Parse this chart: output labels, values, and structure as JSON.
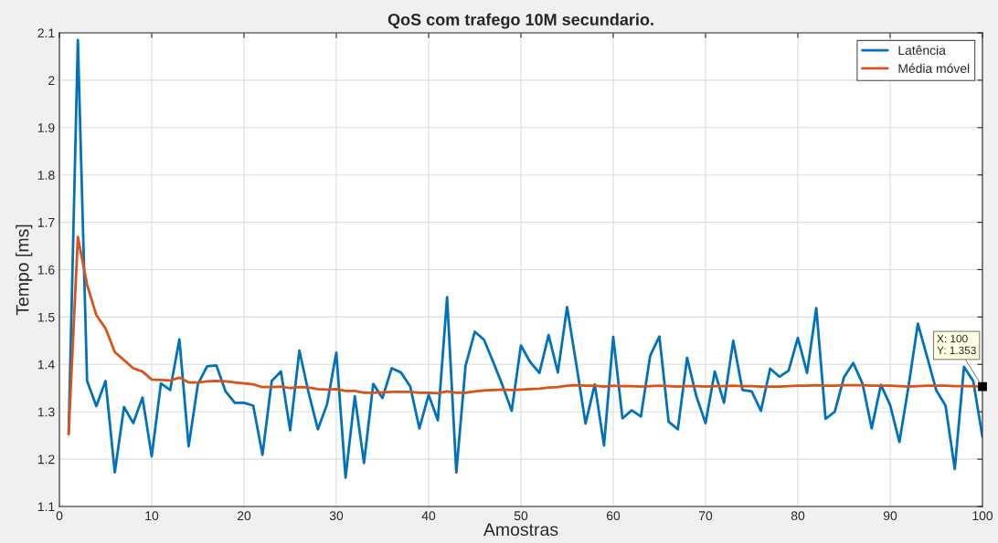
{
  "chart_data": {
    "type": "line",
    "title": "QoS com trafego 10M secundario.",
    "xlabel": "Amostras",
    "ylabel": "Tempo [ms]",
    "x": [
      1,
      2,
      3,
      4,
      5,
      6,
      7,
      8,
      9,
      10,
      11,
      12,
      13,
      14,
      15,
      16,
      17,
      18,
      19,
      20,
      21,
      22,
      23,
      24,
      25,
      26,
      27,
      28,
      29,
      30,
      31,
      32,
      33,
      34,
      35,
      36,
      37,
      38,
      39,
      40,
      41,
      42,
      43,
      44,
      45,
      46,
      47,
      48,
      49,
      50,
      51,
      52,
      53,
      54,
      55,
      56,
      57,
      58,
      59,
      60,
      61,
      62,
      63,
      64,
      65,
      66,
      67,
      68,
      69,
      70,
      71,
      72,
      73,
      74,
      75,
      76,
      77,
      78,
      79,
      80,
      81,
      82,
      83,
      84,
      85,
      86,
      87,
      88,
      89,
      90,
      91,
      92,
      93,
      94,
      95,
      96,
      97,
      98,
      99,
      100
    ],
    "series": [
      {
        "name": "Latência",
        "color": "#0072bd",
        "values": [
          1.253,
          2.085,
          1.365,
          1.312,
          1.365,
          1.172,
          1.31,
          1.276,
          1.33,
          1.206,
          1.36,
          1.346,
          1.453,
          1.227,
          1.358,
          1.396,
          1.398,
          1.343,
          1.319,
          1.319,
          1.313,
          1.209,
          1.365,
          1.385,
          1.261,
          1.429,
          1.34,
          1.263,
          1.316,
          1.425,
          1.161,
          1.333,
          1.192,
          1.359,
          1.329,
          1.392,
          1.383,
          1.354,
          1.265,
          1.336,
          1.282,
          1.542,
          1.172,
          1.397,
          1.469,
          1.452,
          1.405,
          1.356,
          1.302,
          1.44,
          1.405,
          1.382,
          1.462,
          1.383,
          1.521,
          1.4,
          1.275,
          1.358,
          1.229,
          1.458,
          1.286,
          1.303,
          1.29,
          1.418,
          1.459,
          1.279,
          1.263,
          1.414,
          1.333,
          1.276,
          1.385,
          1.319,
          1.45,
          1.346,
          1.343,
          1.302,
          1.391,
          1.374,
          1.387,
          1.456,
          1.382,
          1.519,
          1.285,
          1.3,
          1.373,
          1.403,
          1.36,
          1.265,
          1.357,
          1.314,
          1.236,
          1.355,
          1.486,
          1.416,
          1.345,
          1.313,
          1.179,
          1.395,
          1.365,
          1.247
        ]
      },
      {
        "name": "Média móvel",
        "color": "#d95319",
        "values": [
          1.253,
          1.669,
          1.568,
          1.504,
          1.476,
          1.426,
          1.409,
          1.392,
          1.385,
          1.368,
          1.367,
          1.366,
          1.372,
          1.362,
          1.362,
          1.364,
          1.365,
          1.364,
          1.362,
          1.36,
          1.358,
          1.352,
          1.352,
          1.353,
          1.35,
          1.352,
          1.351,
          1.348,
          1.347,
          1.348,
          1.344,
          1.344,
          1.34,
          1.34,
          1.341,
          1.342,
          1.342,
          1.342,
          1.34,
          1.34,
          1.339,
          1.343,
          1.34,
          1.34,
          1.343,
          1.345,
          1.346,
          1.347,
          1.346,
          1.347,
          1.348,
          1.349,
          1.351,
          1.352,
          1.355,
          1.356,
          1.355,
          1.355,
          1.353,
          1.355,
          1.354,
          1.354,
          1.353,
          1.354,
          1.355,
          1.354,
          1.353,
          1.354,
          1.354,
          1.353,
          1.354,
          1.354,
          1.355,
          1.354,
          1.354,
          1.353,
          1.353,
          1.353,
          1.354,
          1.355,
          1.355,
          1.356,
          1.355,
          1.355,
          1.356,
          1.356,
          1.356,
          1.355,
          1.355,
          1.355,
          1.354,
          1.353,
          1.354,
          1.355,
          1.355,
          1.355,
          1.354,
          1.354,
          1.354,
          1.353
        ]
      }
    ],
    "xlim": [
      0,
      100
    ],
    "ylim": [
      1.1,
      2.1
    ],
    "xticks": [
      0,
      10,
      20,
      30,
      40,
      50,
      60,
      70,
      80,
      90,
      100
    ],
    "yticks": [
      1.1,
      1.2,
      1.3,
      1.4,
      1.5,
      1.6,
      1.7,
      1.8,
      1.9,
      2,
      2.1
    ],
    "annotations": [
      {
        "text": "X: 100\nY: 1.353",
        "x": 100,
        "y": 1.353
      }
    ],
    "grid": true,
    "legend": "top right",
    "line_style": "solid",
    "marker": "none"
  }
}
